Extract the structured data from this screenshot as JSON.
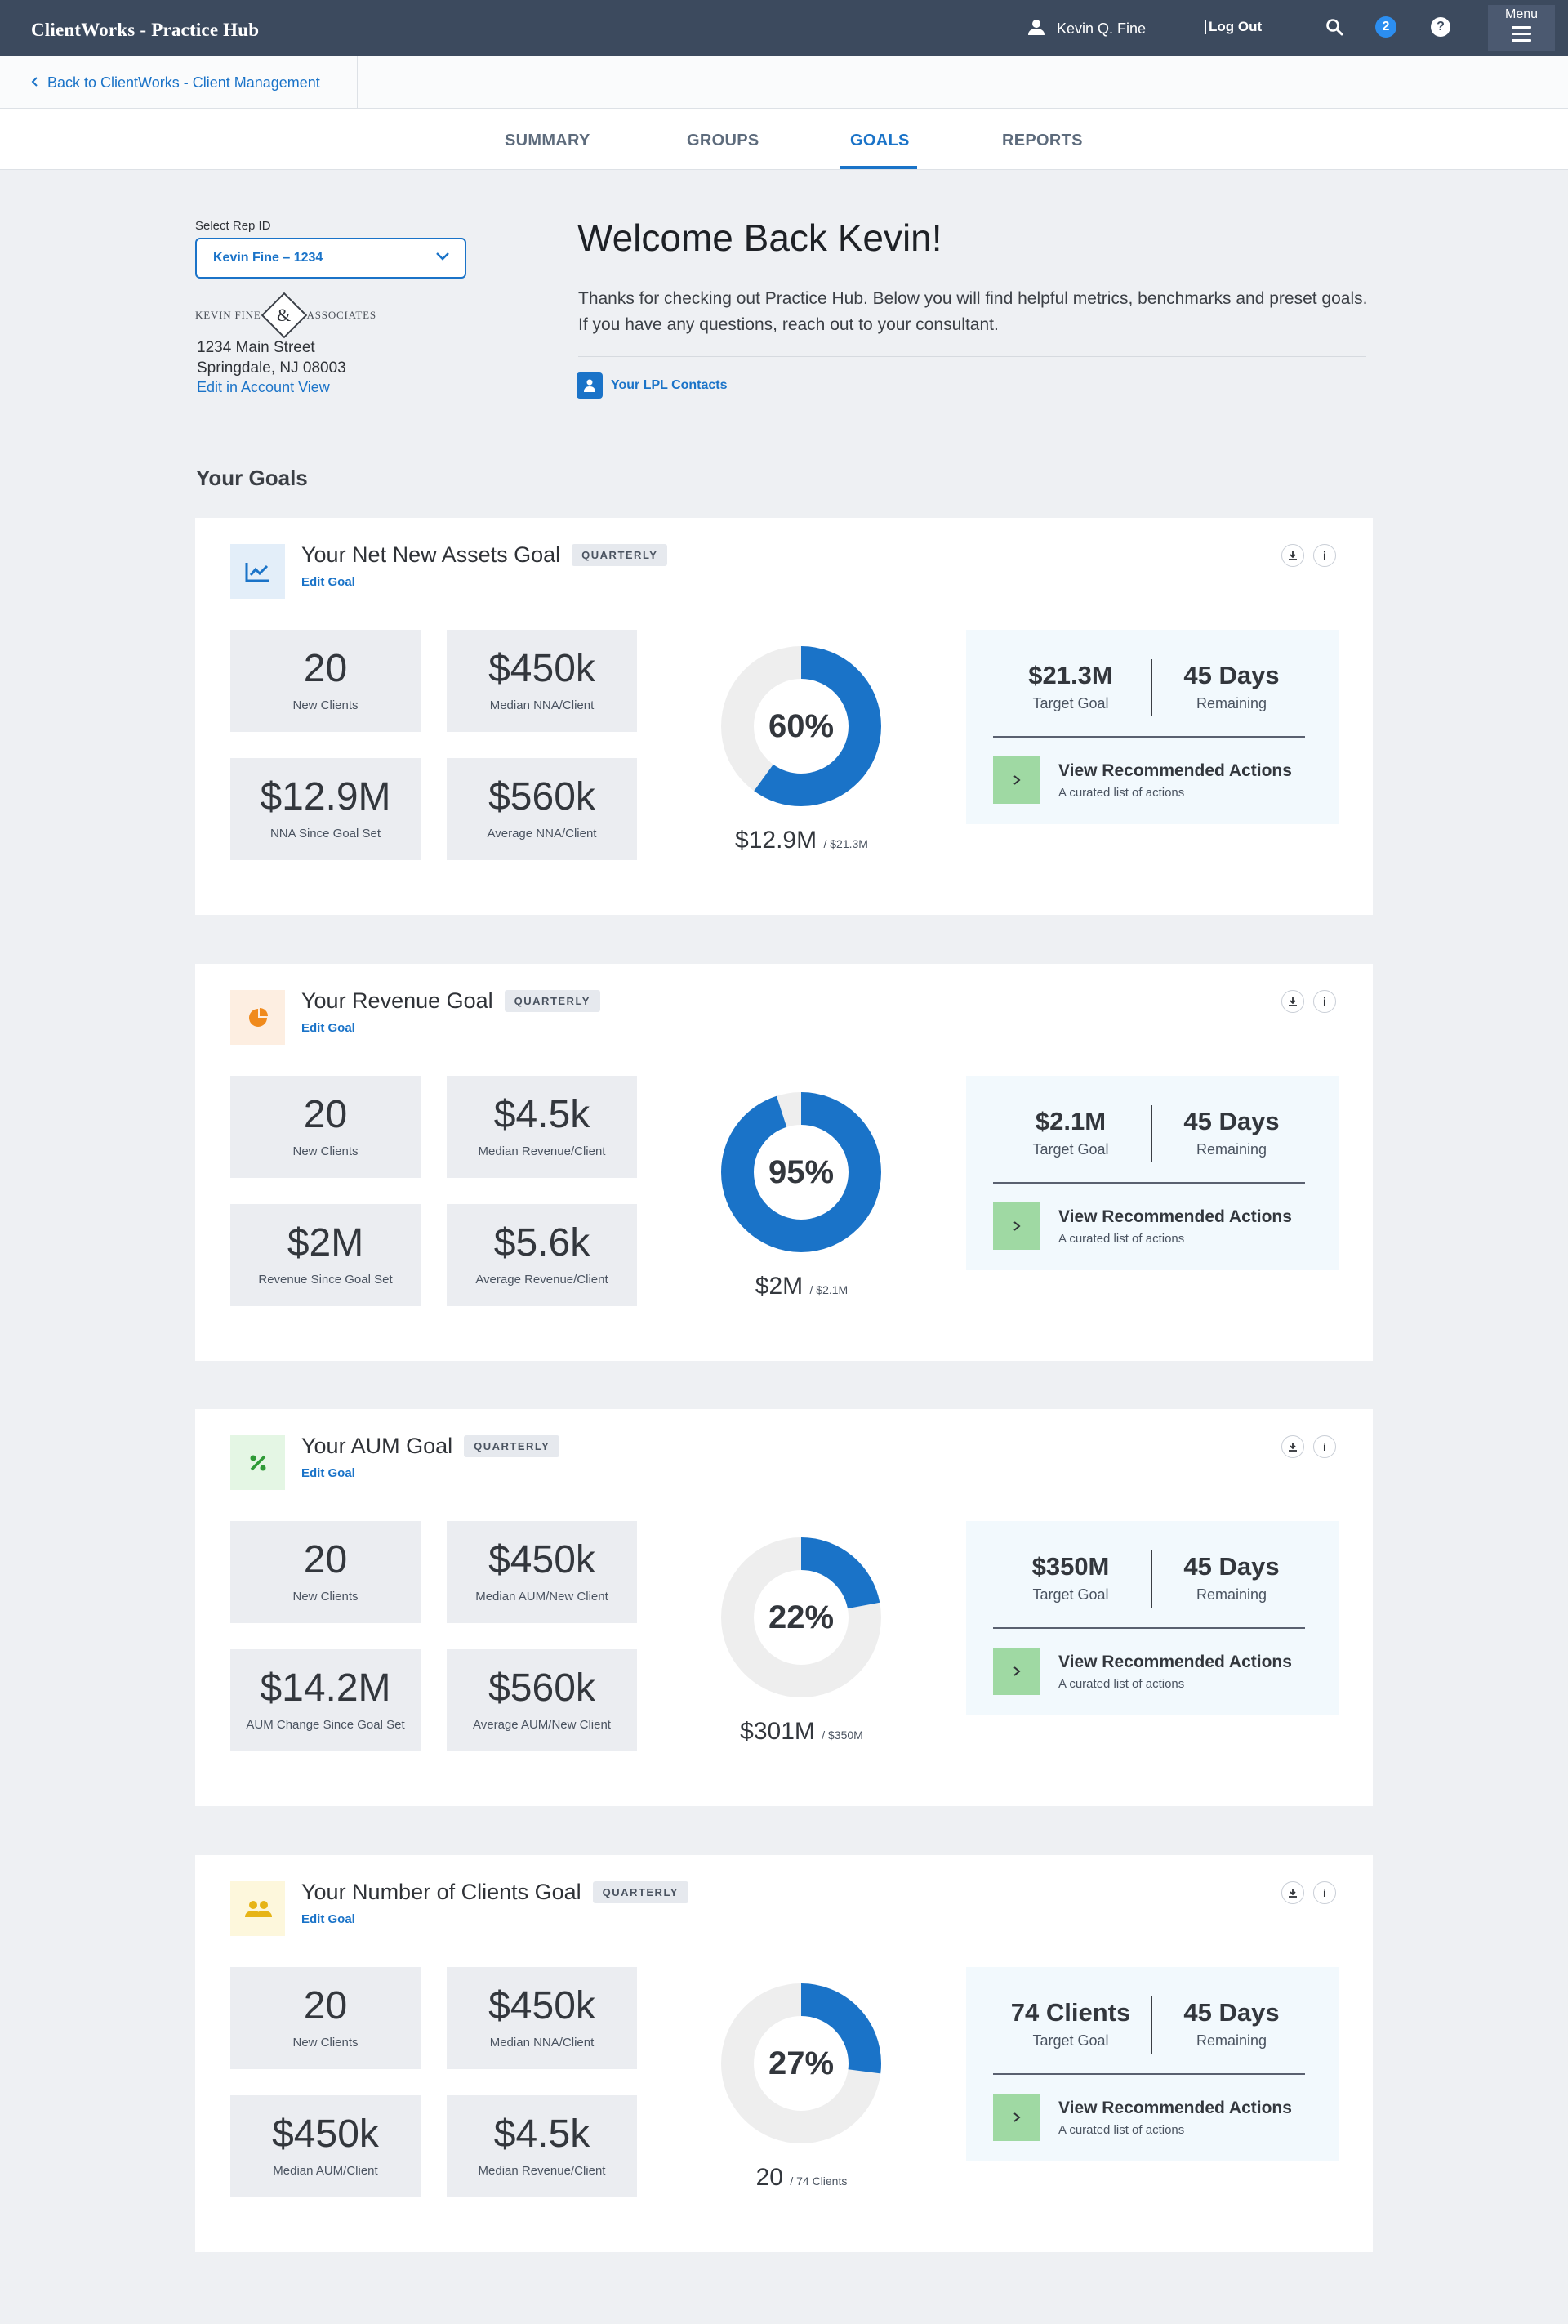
{
  "header": {
    "app_title": "ClientWorks - Practice Hub",
    "user_name": "Kevin Q. Fine",
    "logout": "Log Out",
    "notifications": "2",
    "help": "?",
    "menu": "Menu"
  },
  "backlink": {
    "label": "Back to ClientWorks - Client Management"
  },
  "tabs": [
    {
      "label": "SUMMARY"
    },
    {
      "label": "GROUPS"
    },
    {
      "label": "GOALS",
      "active": true
    },
    {
      "label": "REPORTS"
    }
  ],
  "rep": {
    "label": "Select Rep ID",
    "selected": "Kevin Fine – 1234"
  },
  "firm": {
    "left": "KEVIN FINE",
    "mark": "&",
    "right": "ASSOCIATES",
    "address1": "1234 Main Street",
    "address2": "Springdale, NJ 08003",
    "edit": "Edit in Account View"
  },
  "welcome": {
    "title": "Welcome Back Kevin!",
    "text": "Thanks for checking out Practice Hub. Below you will find helpful metrics, benchmarks and preset goals. If you have any questions, reach out to your consultant.",
    "contacts": "Your LPL Contacts"
  },
  "goals_title": "Your Goals",
  "colors": {
    "primary": "#1a73c8",
    "header": "#3c4a5e",
    "donut_track": "#eeeeee",
    "action_green": "#9fd9a3"
  },
  "goals": [
    {
      "title": "Your Net New Assets Goal",
      "frequency": "QUARTERLY",
      "edit": "Edit Goal",
      "icon": "trend-chart-icon",
      "icon_bg": "#e3eef9",
      "icon_color": "#1a73c8",
      "stats": [
        {
          "value": "20",
          "label": "New Clients"
        },
        {
          "value": "$450k",
          "label": "Median NNA/Client"
        },
        {
          "value": "$12.9M",
          "label": "NNA Since Goal Set"
        },
        {
          "value": "$560k",
          "label": "Average NNA/Client"
        }
      ],
      "percent": 60,
      "percent_label": "60%",
      "progress_value": "$12.9M",
      "progress_of": "/ $21.3M",
      "target_value": "$21.3M",
      "target_label": "Target Goal",
      "days_value": "45 Days",
      "days_label": "Remaining",
      "action_title": "View Recommended Actions",
      "action_sub": "A curated list of actions"
    },
    {
      "title": "Your Revenue Goal",
      "frequency": "QUARTERLY",
      "edit": "Edit Goal",
      "icon": "pie-chart-icon",
      "icon_bg": "#fdeee1",
      "icon_color": "#f08a1c",
      "stats": [
        {
          "value": "20",
          "label": "New Clients"
        },
        {
          "value": "$4.5k",
          "label": "Median Revenue/Client"
        },
        {
          "value": "$2M",
          "label": "Revenue Since Goal Set"
        },
        {
          "value": "$5.6k",
          "label": "Average Revenue/Client"
        }
      ],
      "percent": 95,
      "percent_label": "95%",
      "progress_value": "$2M",
      "progress_of": "/ $2.1M",
      "target_value": "$2.1M",
      "target_label": "Target Goal",
      "days_value": "45 Days",
      "days_label": "Remaining",
      "action_title": "View Recommended Actions",
      "action_sub": "A curated list of actions"
    },
    {
      "title": "Your AUM Goal",
      "frequency": "QUARTERLY",
      "edit": "Edit Goal",
      "icon": "percent-icon",
      "icon_bg": "#e4f6e4",
      "icon_color": "#2e9a36",
      "stats": [
        {
          "value": "20",
          "label": "New Clients"
        },
        {
          "value": "$450k",
          "label": "Median AUM/New Client"
        },
        {
          "value": "$14.2M",
          "label": "AUM Change Since Goal Set"
        },
        {
          "value": "$560k",
          "label": "Average AUM/New Client"
        }
      ],
      "percent": 22,
      "percent_label": "22%",
      "progress_value": "$301M",
      "progress_of": "/ $350M",
      "target_value": "$350M",
      "target_label": "Target Goal",
      "days_value": "45 Days",
      "days_label": "Remaining",
      "action_title": "View Recommended Actions",
      "action_sub": "A curated list of actions"
    },
    {
      "title": "Your Number of Clients Goal",
      "frequency": "QUARTERLY",
      "edit": "Edit Goal",
      "icon": "people-icon",
      "icon_bg": "#fdf7dc",
      "icon_color": "#e6b417",
      "stats": [
        {
          "value": "20",
          "label": "New Clients"
        },
        {
          "value": "$450k",
          "label": "Median NNA/Client"
        },
        {
          "value": "$450k",
          "label": "Median AUM/Client"
        },
        {
          "value": "$4.5k",
          "label": "Median Revenue/Client"
        }
      ],
      "percent": 27,
      "percent_label": "27%",
      "progress_value": "20",
      "progress_of": "/ 74 Clients",
      "target_value": "74 Clients",
      "target_label": "Target Goal",
      "days_value": "45 Days",
      "days_label": "Remaining",
      "action_title": "View Recommended Actions",
      "action_sub": "A curated list of actions"
    }
  ]
}
